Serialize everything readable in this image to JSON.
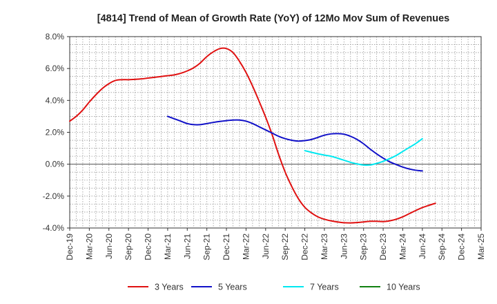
{
  "chart_data": {
    "type": "line",
    "title": "[4814]  Trend of Mean of Growth Rate (YoY) of 12Mo Mov Sum of Revenues",
    "xlabel": "",
    "ylabel": "",
    "ylim": [
      -4.0,
      8.0
    ],
    "y_ticks": [
      -4.0,
      -2.0,
      0.0,
      2.0,
      4.0,
      6.0,
      8.0
    ],
    "y_tick_labels": [
      "-4.0%",
      "-2.0%",
      "0.0%",
      "2.0%",
      "4.0%",
      "6.0%",
      "8.0%"
    ],
    "x_range_months": [
      0,
      63
    ],
    "x_tick_months": [
      0,
      3,
      6,
      9,
      12,
      15,
      18,
      21,
      24,
      27,
      30,
      33,
      36,
      39,
      42,
      45,
      48,
      51,
      54,
      57,
      60,
      63
    ],
    "x_tick_labels": [
      "Dec-19",
      "Mar-20",
      "Jun-20",
      "Sep-20",
      "Dec-20",
      "Mar-21",
      "Jun-21",
      "Sep-21",
      "Dec-21",
      "Mar-22",
      "Jun-22",
      "Sep-22",
      "Dec-22",
      "Mar-23",
      "Jun-23",
      "Sep-23",
      "Dec-23",
      "Mar-24",
      "Jun-24",
      "Sep-24",
      "Dec-24",
      "Mar-25"
    ],
    "grid": true,
    "legend_position": "bottom",
    "series": [
      {
        "name": "3 Years",
        "color": "#e01010",
        "points": [
          [
            0,
            2.7
          ],
          [
            1,
            3.0
          ],
          [
            2,
            3.4
          ],
          [
            3,
            3.9
          ],
          [
            4,
            4.35
          ],
          [
            5,
            4.75
          ],
          [
            6,
            5.05
          ],
          [
            7,
            5.25
          ],
          [
            8,
            5.3
          ],
          [
            9,
            5.3
          ],
          [
            10,
            5.32
          ],
          [
            11,
            5.35
          ],
          [
            12,
            5.4
          ],
          [
            13,
            5.45
          ],
          [
            14,
            5.5
          ],
          [
            15,
            5.55
          ],
          [
            16,
            5.6
          ],
          [
            17,
            5.7
          ],
          [
            18,
            5.85
          ],
          [
            19,
            6.05
          ],
          [
            20,
            6.35
          ],
          [
            21,
            6.75
          ],
          [
            22,
            7.05
          ],
          [
            23,
            7.25
          ],
          [
            24,
            7.25
          ],
          [
            25,
            7.0
          ],
          [
            26,
            6.45
          ],
          [
            27,
            5.75
          ],
          [
            28,
            4.9
          ],
          [
            29,
            3.95
          ],
          [
            30,
            2.95
          ],
          [
            31,
            1.85
          ],
          [
            32,
            0.6
          ],
          [
            33,
            -0.5
          ],
          [
            34,
            -1.4
          ],
          [
            35,
            -2.15
          ],
          [
            36,
            -2.7
          ],
          [
            37,
            -3.05
          ],
          [
            38,
            -3.3
          ],
          [
            39,
            -3.45
          ],
          [
            40,
            -3.55
          ],
          [
            41,
            -3.62
          ],
          [
            42,
            -3.67
          ],
          [
            43,
            -3.68
          ],
          [
            44,
            -3.66
          ],
          [
            45,
            -3.62
          ],
          [
            46,
            -3.58
          ],
          [
            47,
            -3.58
          ],
          [
            48,
            -3.6
          ],
          [
            49,
            -3.55
          ],
          [
            50,
            -3.45
          ],
          [
            51,
            -3.3
          ],
          [
            52,
            -3.1
          ],
          [
            53,
            -2.9
          ],
          [
            54,
            -2.72
          ],
          [
            55,
            -2.58
          ],
          [
            56,
            -2.45
          ]
        ]
      },
      {
        "name": "5 Years",
        "color": "#1010c8",
        "points": [
          [
            15,
            3.0
          ],
          [
            16,
            2.85
          ],
          [
            17,
            2.7
          ],
          [
            18,
            2.55
          ],
          [
            19,
            2.48
          ],
          [
            20,
            2.48
          ],
          [
            21,
            2.55
          ],
          [
            22,
            2.62
          ],
          [
            23,
            2.68
          ],
          [
            24,
            2.73
          ],
          [
            25,
            2.77
          ],
          [
            26,
            2.77
          ],
          [
            27,
            2.7
          ],
          [
            28,
            2.55
          ],
          [
            29,
            2.35
          ],
          [
            30,
            2.15
          ],
          [
            31,
            1.95
          ],
          [
            32,
            1.75
          ],
          [
            33,
            1.6
          ],
          [
            34,
            1.5
          ],
          [
            35,
            1.45
          ],
          [
            36,
            1.48
          ],
          [
            37,
            1.55
          ],
          [
            38,
            1.68
          ],
          [
            39,
            1.82
          ],
          [
            40,
            1.9
          ],
          [
            41,
            1.92
          ],
          [
            42,
            1.88
          ],
          [
            43,
            1.75
          ],
          [
            44,
            1.55
          ],
          [
            45,
            1.28
          ],
          [
            46,
            0.95
          ],
          [
            47,
            0.65
          ],
          [
            48,
            0.38
          ],
          [
            49,
            0.15
          ],
          [
            50,
            -0.02
          ],
          [
            51,
            -0.18
          ],
          [
            52,
            -0.3
          ],
          [
            53,
            -0.38
          ],
          [
            54,
            -0.42
          ]
        ]
      },
      {
        "name": "7 Years",
        "color": "#00e8f0",
        "points": [
          [
            36,
            0.85
          ],
          [
            37,
            0.75
          ],
          [
            38,
            0.65
          ],
          [
            39,
            0.57
          ],
          [
            40,
            0.5
          ],
          [
            41,
            0.38
          ],
          [
            42,
            0.25
          ],
          [
            43,
            0.12
          ],
          [
            44,
            0.02
          ],
          [
            45,
            -0.05
          ],
          [
            46,
            -0.05
          ],
          [
            47,
            0.05
          ],
          [
            48,
            0.18
          ],
          [
            49,
            0.35
          ],
          [
            50,
            0.55
          ],
          [
            51,
            0.8
          ],
          [
            52,
            1.05
          ],
          [
            53,
            1.3
          ],
          [
            54,
            1.6
          ]
        ]
      },
      {
        "name": "10 Years",
        "color": "#108010",
        "points": []
      }
    ]
  }
}
